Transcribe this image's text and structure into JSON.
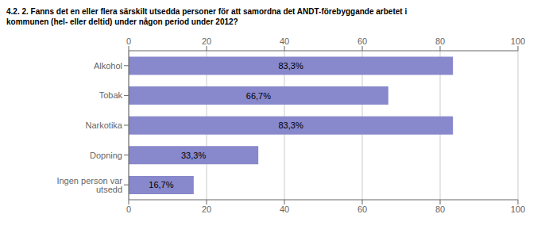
{
  "chart_data": {
    "type": "bar",
    "orientation": "horizontal",
    "title": "4.2. 2. Fanns det en eller flera särskilt utsedda personer för att samordna det ANDT-förebyggande arbetet i\nkommunen (hel- eller deltid) under någon period under 2012?",
    "categories": [
      "Alkohol",
      "Tobak",
      "Narkotika",
      "Dopning",
      "Ingen person var utsedd"
    ],
    "values": [
      83.3,
      66.7,
      83.3,
      33.3,
      16.7
    ],
    "value_labels": [
      "83,3%",
      "66,7%",
      "83,3%",
      "33,3%",
      "16,7%"
    ],
    "data_labels": true,
    "color": "#8888cc",
    "xlim": [
      0,
      100
    ],
    "xticks": [
      0,
      20,
      40,
      60,
      80,
      100
    ],
    "grid": true
  }
}
